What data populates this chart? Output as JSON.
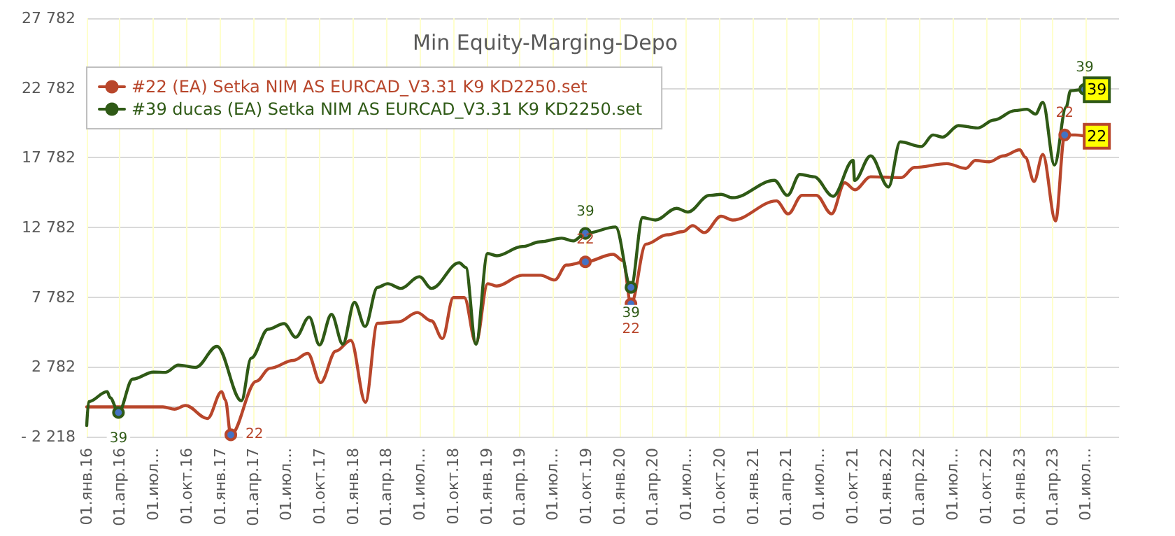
{
  "chart_data": {
    "type": "line",
    "title": "Min Equity-Marging-Depo",
    "xlim": [
      "2016-01-01",
      "2023-10-01"
    ],
    "xticks": [
      {
        "value": "2016-01-01",
        "label": "01.янв.16"
      },
      {
        "value": "2016-04-01",
        "label": "01.апр.16"
      },
      {
        "value": "2016-07-01",
        "label": "01.июл…"
      },
      {
        "value": "2016-10-01",
        "label": "01.окт.16"
      },
      {
        "value": "2017-01-01",
        "label": "01.янв.17"
      },
      {
        "value": "2017-04-01",
        "label": "01.апр.17"
      },
      {
        "value": "2017-07-01",
        "label": "01.июл…"
      },
      {
        "value": "2017-10-01",
        "label": "01.окт.17"
      },
      {
        "value": "2018-01-01",
        "label": "01.янв.18"
      },
      {
        "value": "2018-04-01",
        "label": "01.апр.18"
      },
      {
        "value": "2018-07-01",
        "label": "01.июл…"
      },
      {
        "value": "2018-10-01",
        "label": "01.окт.18"
      },
      {
        "value": "2019-01-01",
        "label": "01.янв.19"
      },
      {
        "value": "2019-04-01",
        "label": "01.апр.19"
      },
      {
        "value": "2019-07-01",
        "label": "01.июл…"
      },
      {
        "value": "2019-10-01",
        "label": "01.окт.19"
      },
      {
        "value": "2020-01-01",
        "label": "01.янв.20"
      },
      {
        "value": "2020-04-01",
        "label": "01.апр.20"
      },
      {
        "value": "2020-07-01",
        "label": "01.июл…"
      },
      {
        "value": "2020-10-01",
        "label": "01.окт.20"
      },
      {
        "value": "2021-01-01",
        "label": "01.янв.21"
      },
      {
        "value": "2021-04-01",
        "label": "01.апр.21"
      },
      {
        "value": "2021-07-01",
        "label": "01.июл…"
      },
      {
        "value": "2021-10-01",
        "label": "01.окт.21"
      },
      {
        "value": "2022-01-01",
        "label": "01.янв.22"
      },
      {
        "value": "2022-04-01",
        "label": "01.апр.22"
      },
      {
        "value": "2022-07-01",
        "label": "01.июл…"
      },
      {
        "value": "2022-10-01",
        "label": "01.окт.22"
      },
      {
        "value": "2023-01-01",
        "label": "01.янв.23"
      },
      {
        "value": "2023-04-01",
        "label": "01.апр.23"
      },
      {
        "value": "2023-07-01",
        "label": "01.июл…"
      }
    ],
    "ylim": [
      -2218,
      27782
    ],
    "yticks": [
      {
        "value": -2218,
        "label": "- 2 218"
      },
      {
        "value": 2782,
        "label": "2 782"
      },
      {
        "value": 7782,
        "label": "7 782"
      },
      {
        "value": 12782,
        "label": "12 782"
      },
      {
        "value": 17782,
        "label": "17 782"
      },
      {
        "value": 22782,
        "label": "22 782"
      },
      {
        "value": 27782,
        "label": "27 782"
      }
    ],
    "grid": true,
    "legend": "top left",
    "marker": "none",
    "line_style": "solid",
    "series": [
      {
        "name": "#22 (EA) Setka NIM AS EURCAD_V3.31 K9 KD2250.set",
        "color": "#b8462b",
        "x": [
          "2016-01-01",
          "2016-07-28",
          "2016-08-29",
          "2016-09-28",
          "2016-11-27",
          "2017-01-05",
          "2017-01-15",
          "2017-01-30",
          "2017-04-10",
          "2017-05-17",
          "2017-07-21",
          "2017-08-29",
          "2017-10-03",
          "2017-11-14",
          "2017-12-25",
          "2018-02-03",
          "2018-03-08",
          "2018-05-05",
          "2018-06-25",
          "2018-08-03",
          "2018-09-02",
          "2018-10-02",
          "2018-11-01",
          "2018-12-03",
          "2019-01-04",
          "2019-01-29",
          "2019-04-09",
          "2019-05-29",
          "2019-07-07",
          "2019-08-08",
          "2019-09-29",
          "2019-12-14",
          "2020-01-10",
          "2020-02-01",
          "2020-03-13",
          "2020-05-10",
          "2020-06-23",
          "2020-07-19",
          "2020-08-20",
          "2020-10-05",
          "2020-11-06",
          "2021-03-06",
          "2021-04-07",
          "2021-05-15",
          "2021-06-23",
          "2021-08-04",
          "2021-09-09",
          "2021-10-07",
          "2021-11-19",
          "2022-02-11",
          "2022-03-19",
          "2022-06-16",
          "2022-08-07",
          "2022-09-02",
          "2022-10-10",
          "2022-11-18",
          "2023-01-02",
          "2023-01-17",
          "2023-02-10",
          "2023-03-06",
          "2023-04-10",
          "2023-05-05",
          "2023-06-03",
          "2023-07-11",
          "2023-08-01"
        ],
        "values": [
          -88,
          -88,
          -248,
          12,
          -918,
          1012,
          412,
          -2088,
          1752,
          2682,
          3252,
          3752,
          1652,
          3912,
          4682,
          252,
          5912,
          6012,
          6682,
          6082,
          4812,
          7752,
          7752,
          4482,
          8752,
          8582,
          9352,
          9352,
          9012,
          10082,
          10312,
          10852,
          10412,
          7300,
          11582,
          12252,
          12482,
          12912,
          12412,
          13582,
          13312,
          14682,
          13752,
          15082,
          15082,
          13752,
          15982,
          15482,
          16412,
          16352,
          17082,
          17352,
          17012,
          17582,
          17482,
          17912,
          18352,
          17812,
          16082,
          18012,
          13252,
          19412,
          19412,
          19312,
          19312
        ]
      },
      {
        "name": "#39 ducas (EA) Setka NIM AS EURCAD_V3.31 K9 KD2250.set",
        "color": "#2f5a16",
        "x": [
          "2016-01-01",
          "2016-01-06",
          "2016-02-26",
          "2016-03-05",
          "2016-03-28",
          "2016-05-06",
          "2016-07-02",
          "2016-08-04",
          "2016-09-08",
          "2016-10-26",
          "2016-12-23",
          "2017-02-28",
          "2017-03-27",
          "2017-05-12",
          "2017-06-25",
          "2017-07-27",
          "2017-09-02",
          "2017-09-30",
          "2017-11-02",
          "2017-12-03",
          "2018-01-04",
          "2018-02-02",
          "2018-03-08",
          "2018-04-05",
          "2018-05-11",
          "2018-07-01",
          "2018-08-03",
          "2018-10-18",
          "2018-11-05",
          "2018-12-03",
          "2019-01-04",
          "2019-01-29",
          "2019-04-09",
          "2019-05-29",
          "2019-07-26",
          "2019-08-27",
          "2019-09-29",
          "2019-12-21",
          "2020-02-01",
          "2020-03-04",
          "2020-04-08",
          "2020-06-05",
          "2020-07-06",
          "2020-09-03",
          "2020-10-05",
          "2020-11-06",
          "2021-02-28",
          "2021-04-05",
          "2021-05-09",
          "2021-06-17",
          "2021-08-08",
          "2021-10-02",
          "2021-10-06",
          "2021-11-19",
          "2022-01-07",
          "2022-02-08",
          "2022-04-07",
          "2022-05-09",
          "2022-06-04",
          "2022-07-18",
          "2022-09-08",
          "2022-10-23",
          "2022-12-19",
          "2023-01-21",
          "2023-02-14",
          "2023-03-06",
          "2023-04-07",
          "2023-05-09",
          "2023-05-21",
          "2023-06-29",
          "2023-08-01"
        ],
        "values": [
          -1418,
          282,
          1012,
          582,
          -488,
          1912,
          2412,
          2392,
          2912,
          2752,
          4252,
          352,
          3412,
          5482,
          5882,
          4912,
          6352,
          4352,
          6552,
          4412,
          7412,
          5682,
          8482,
          8752,
          8412,
          9252,
          8412,
          10252,
          9912,
          4412,
          10912,
          10752,
          11412,
          11752,
          12012,
          11812,
          12352,
          12812,
          8482,
          13482,
          13312,
          14152,
          13882,
          15082,
          15152,
          14912,
          16152,
          15082,
          16582,
          16412,
          15012,
          17582,
          16152,
          17912,
          15682,
          18912,
          18582,
          19412,
          19252,
          20082,
          19912,
          20482,
          21152,
          21252,
          20912,
          21752,
          17252,
          21412,
          22582,
          22682,
          22652
        ]
      }
    ],
    "annotations": [
      {
        "text": "39",
        "x": "2016-03-28",
        "y": -488
      },
      {
        "text": "22",
        "x": "2017-01-30",
        "y": -2088
      },
      {
        "text": "39",
        "x": "2019-09-29",
        "y": 12352
      },
      {
        "text": "22",
        "x": "2019-09-29",
        "y": 10312
      },
      {
        "text": "39",
        "x": "2020-02-01",
        "y": 8482
      },
      {
        "text": "22",
        "x": "2020-02-01",
        "y": 7300
      },
      {
        "text": "22",
        "x": "2023-05-05",
        "y": 19412
      },
      {
        "text": "39",
        "x": "2023-06-29",
        "y": 22682
      },
      {
        "text": "39",
        "x": "2023-08-01",
        "y": 22652
      },
      {
        "text": "22",
        "x": "2023-08-01",
        "y": 19312
      }
    ]
  }
}
